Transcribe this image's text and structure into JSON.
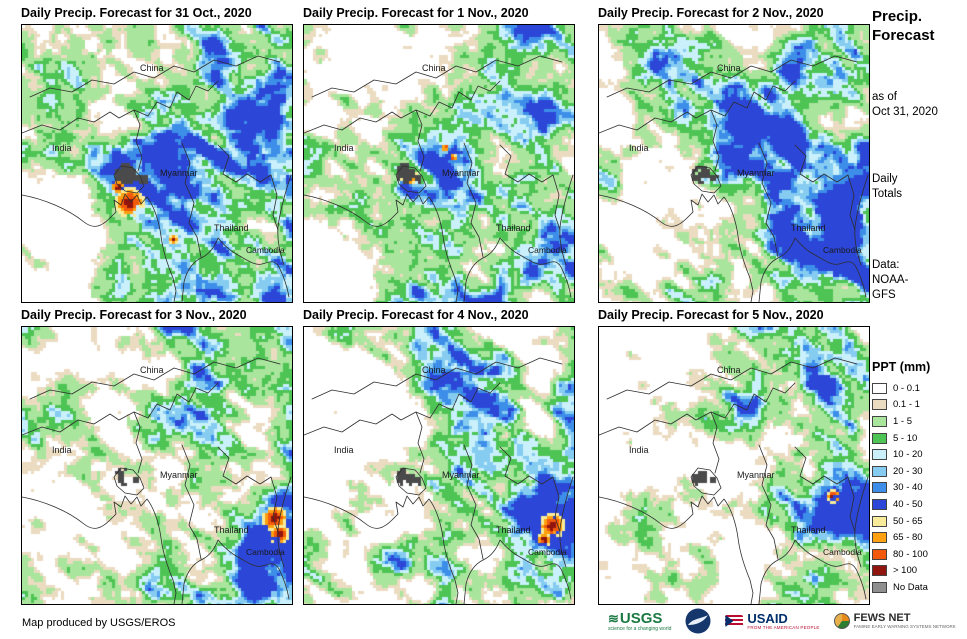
{
  "panels": [
    {
      "title": "Daily Precip. Forecast for 31 Oct., 2020",
      "labels": {
        "china": "China",
        "india": "India",
        "myanmar": "Myanmar",
        "thailand": "Thailand",
        "cambodia": "Cambodia"
      }
    },
    {
      "title": "Daily Precip. Forecast for 1 Nov., 2020",
      "labels": {
        "china": "China",
        "india": "India",
        "myanmar": "Myanmar",
        "thailand": "Thailand",
        "cambodia": "Cambodia"
      }
    },
    {
      "title": "Daily Precip. Forecast for 2 Nov., 2020",
      "labels": {
        "china": "China",
        "india": "India",
        "myanmar": "Myanmar",
        "thailand": "Thailand",
        "cambodia": "Cambodia"
      }
    },
    {
      "title": "Daily Precip. Forecast for 3 Nov., 2020",
      "labels": {
        "china": "China",
        "india": "India",
        "myanmar": "Myanmar",
        "thailand": "Thailand",
        "cambodia": "Cambodia"
      }
    },
    {
      "title": "Daily Precip. Forecast for 4 Nov., 2020",
      "labels": {
        "china": "China",
        "india": "India",
        "myanmar": "Myanmar",
        "thailand": "Thailand",
        "cambodia": "Cambodia"
      }
    },
    {
      "title": "Daily Precip. Forecast for 5 Nov., 2020",
      "labels": {
        "china": "China",
        "india": "India",
        "myanmar": "Myanmar",
        "thailand": "Thailand",
        "cambodia": "Cambodia"
      }
    }
  ],
  "sidebar": {
    "title": "Precip.\nForecast",
    "as_of": "as of\nOct 31, 2020",
    "totals": "Daily\nTotals",
    "data_source": "Data:\nNOAA-\nGFS"
  },
  "legend": {
    "title": "PPT (mm)",
    "entries": [
      {
        "label": "0 - 0.1",
        "color": "#FFFFFF"
      },
      {
        "label": "0.1 - 1",
        "color": "#EBDCC1"
      },
      {
        "label": "1 - 5",
        "color": "#A9E59C"
      },
      {
        "label": "5 - 10",
        "color": "#4EC455"
      },
      {
        "label": "10 - 20",
        "color": "#C9F0FB"
      },
      {
        "label": "20 - 30",
        "color": "#86CCF1"
      },
      {
        "label": "30 - 40",
        "color": "#3D8EE9"
      },
      {
        "label": "40 - 50",
        "color": "#2C46D8"
      },
      {
        "label": "50 - 65",
        "color": "#F8EC9B"
      },
      {
        "label": "65 - 80",
        "color": "#FFA010"
      },
      {
        "label": "80 - 100",
        "color": "#F2590A"
      },
      {
        "label": "> 100",
        "color": "#8F150E"
      },
      {
        "label": "No Data",
        "color": "#8F8F8F"
      }
    ]
  },
  "palette": {
    "white": "#FFFFFF",
    "tan": "#EBDCC1",
    "green_light": "#A9E59C",
    "green": "#4EC455",
    "blue_pale": "#C9F0FB",
    "blue_light": "#86CCF1",
    "blue": "#3D8EE9",
    "blue_dark": "#2C46D8",
    "yellow": "#F8EC9B",
    "orange": "#FFA010",
    "red_orange": "#F2590A",
    "red_dark": "#8F150E",
    "nodata": "#4A4A4A"
  },
  "footer": {
    "credit": "Map produced by USGS/EROS",
    "logos": {
      "usgs": {
        "name": "USGS",
        "tagline": "science for a changing world"
      },
      "noaa": {
        "name": "NOAA"
      },
      "usaid": {
        "name": "USAID",
        "tagline": "FROM THE AMERICAN PEOPLE"
      },
      "fewsnet": {
        "name": "FEWS NET",
        "tagline": "FAMINE EARLY WARNING SYSTEMS NETWORK"
      }
    }
  }
}
